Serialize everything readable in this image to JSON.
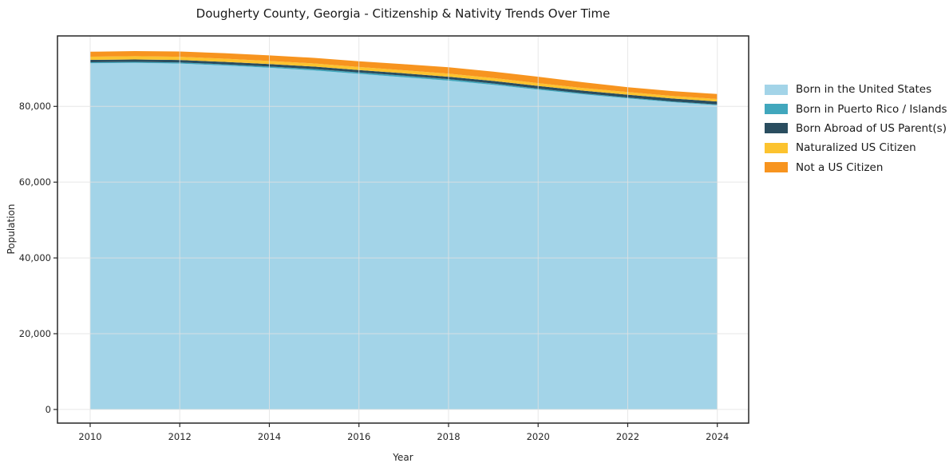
{
  "title": "Dougherty County, Georgia - Citizenship & Nativity Trends Over Time",
  "chart_data": {
    "type": "area",
    "stacked": true,
    "title": "Dougherty County, Georgia - Citizenship & Nativity Trends Over Time",
    "xlabel": "Year",
    "ylabel": "Population",
    "x": [
      2010,
      2011,
      2012,
      2013,
      2014,
      2015,
      2016,
      2017,
      2018,
      2019,
      2020,
      2021,
      2022,
      2023,
      2024
    ],
    "series": [
      {
        "name": "Born in the United States",
        "color": "#a3d4e8",
        "values": [
          91400,
          91500,
          91300,
          90800,
          90200,
          89500,
          88600,
          87700,
          86800,
          85700,
          84400,
          83200,
          82100,
          81100,
          80300
        ]
      },
      {
        "name": "Born in Puerto Rico / Islands",
        "color": "#41a7bd",
        "values": [
          250,
          250,
          300,
          300,
          300,
          350,
          350,
          400,
          400,
          350,
          300,
          250,
          250,
          200,
          200
        ]
      },
      {
        "name": "Born Abroad of US Parent(s)",
        "color": "#2a4d5f",
        "values": [
          630,
          640,
          650,
          650,
          660,
          650,
          650,
          640,
          640,
          660,
          700,
          720,
          750,
          780,
          800
        ]
      },
      {
        "name": "Naturalized US Citizen",
        "color": "#fcc32f",
        "values": [
          840,
          850,
          850,
          840,
          830,
          820,
          800,
          800,
          800,
          780,
          750,
          700,
          680,
          660,
          650
        ]
      },
      {
        "name": "Not a US Citizen",
        "color": "#f7941f",
        "values": [
          1300,
          1350,
          1400,
          1450,
          1470,
          1480,
          1490,
          1600,
          1700,
          1700,
          1690,
          1500,
          1300,
          1300,
          1300
        ]
      }
    ],
    "xticks": [
      2010,
      2012,
      2014,
      2016,
      2018,
      2020,
      2022,
      2024
    ],
    "xtick_labels": [
      "2010",
      "2012",
      "2014",
      "2016",
      "2018",
      "2020",
      "2022",
      "2024"
    ],
    "yticks": [
      0,
      20000,
      40000,
      60000,
      80000
    ],
    "ytick_labels": [
      "0",
      "20,000",
      "40,000",
      "60,000",
      "80,000"
    ],
    "xlim": [
      2009.27,
      2024.7
    ],
    "ylim": [
      -3600,
      98600
    ],
    "grid": true,
    "legend_position": "right-outside"
  },
  "style": {
    "frame_color": "#262626",
    "grid_color": "rgba(225,225,225,0.8)",
    "background": "#ffffff"
  }
}
